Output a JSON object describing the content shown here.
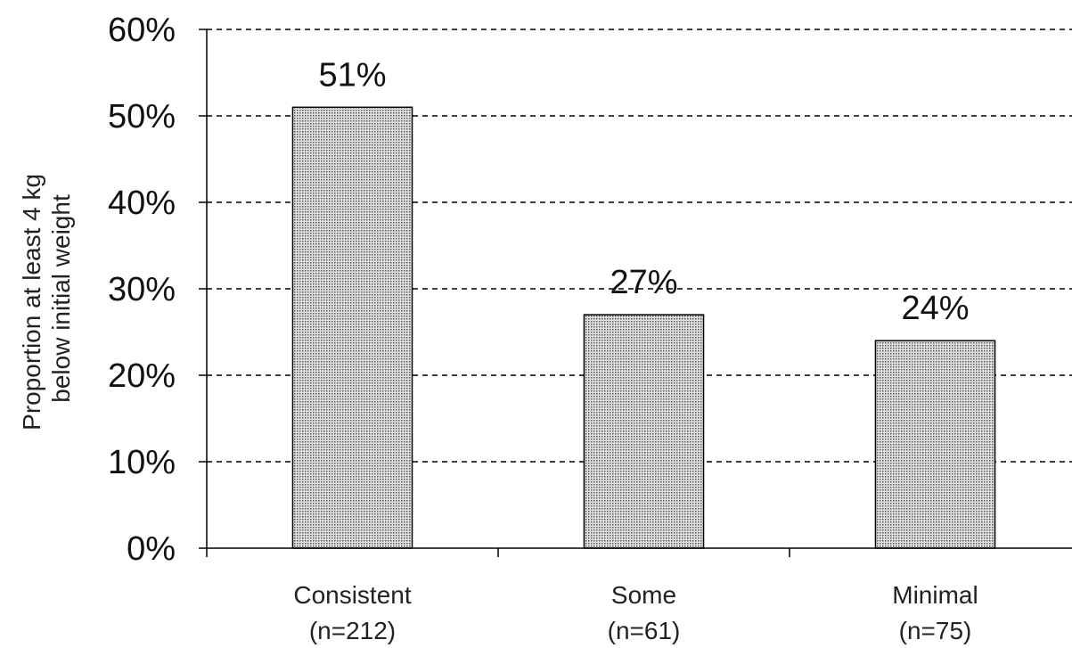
{
  "chart_data": {
    "type": "bar",
    "categories": [
      "Consistent",
      "Some",
      "Minimal"
    ],
    "category_sublabels": [
      "(n=212)",
      "(n=61)",
      "(n=75)"
    ],
    "values": [
      51,
      27,
      24
    ],
    "data_labels": [
      "51%",
      "27%",
      "24%"
    ],
    "title": "",
    "xlabel": "",
    "ylabel_lines": [
      "Proportion at least 4 kg",
      "below initial weight"
    ],
    "ylim": [
      0,
      60
    ],
    "yticks": [
      0,
      10,
      20,
      30,
      40,
      50,
      60
    ],
    "ytick_labels": [
      "0%",
      "10%",
      "20%",
      "30%",
      "40%",
      "50%",
      "60%"
    ],
    "grid": true,
    "grid_style": "dashed",
    "legend": "none",
    "bar_fill": "#c8c8c8",
    "bar_pattern": "dotted",
    "axis_color": "#000000"
  }
}
